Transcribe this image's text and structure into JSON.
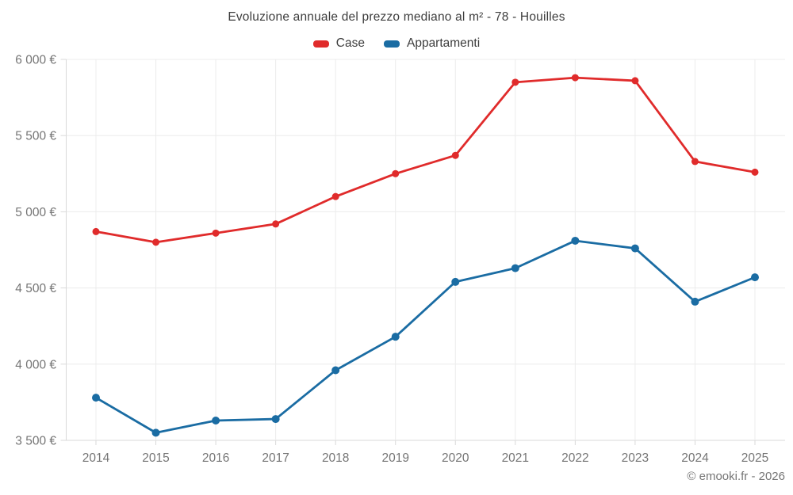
{
  "header": {
    "title": "Evoluzione annuale del prezzo mediano al m² - 78 - Houilles"
  },
  "footer": {
    "copyright": "© emooki.fr - 2026"
  },
  "chart_data": {
    "type": "line",
    "title": "Evoluzione annuale del prezzo mediano al m² - 78 - Houilles",
    "categories": [
      "2014",
      "2015",
      "2016",
      "2017",
      "2018",
      "2019",
      "2020",
      "2021",
      "2022",
      "2023",
      "2024",
      "2025"
    ],
    "series": [
      {
        "name": "Case",
        "color": "#e02b2b",
        "point_radius": 4.5,
        "line_width": 2.8,
        "values": [
          4870,
          4800,
          4860,
          4920,
          5100,
          5250,
          5370,
          5850,
          5880,
          5860,
          5330,
          5260
        ]
      },
      {
        "name": "Appartamenti",
        "color": "#1a6ca3",
        "point_radius": 5,
        "line_width": 2.8,
        "values": [
          3780,
          3550,
          3630,
          3640,
          3960,
          4180,
          4540,
          4630,
          4810,
          4760,
          4410,
          4570
        ]
      }
    ],
    "xlabel": "",
    "ylabel": "",
    "ylim": [
      3500,
      6000
    ],
    "yticks": [
      {
        "value": 6000,
        "label": "6 000 €"
      },
      {
        "value": 5500,
        "label": "5 500 €"
      },
      {
        "value": 5000,
        "label": "5 000 €"
      },
      {
        "value": 4500,
        "label": "4 500 €"
      },
      {
        "value": 4000,
        "label": "4 000 €"
      },
      {
        "value": 3500,
        "label": "3 500 €"
      }
    ],
    "grid": true,
    "legend_position": "top",
    "colors": {
      "grid": "#ececec",
      "axis": "#d9d9d9",
      "tick_label": "#757575",
      "title_text": "#3d3d3d"
    }
  }
}
